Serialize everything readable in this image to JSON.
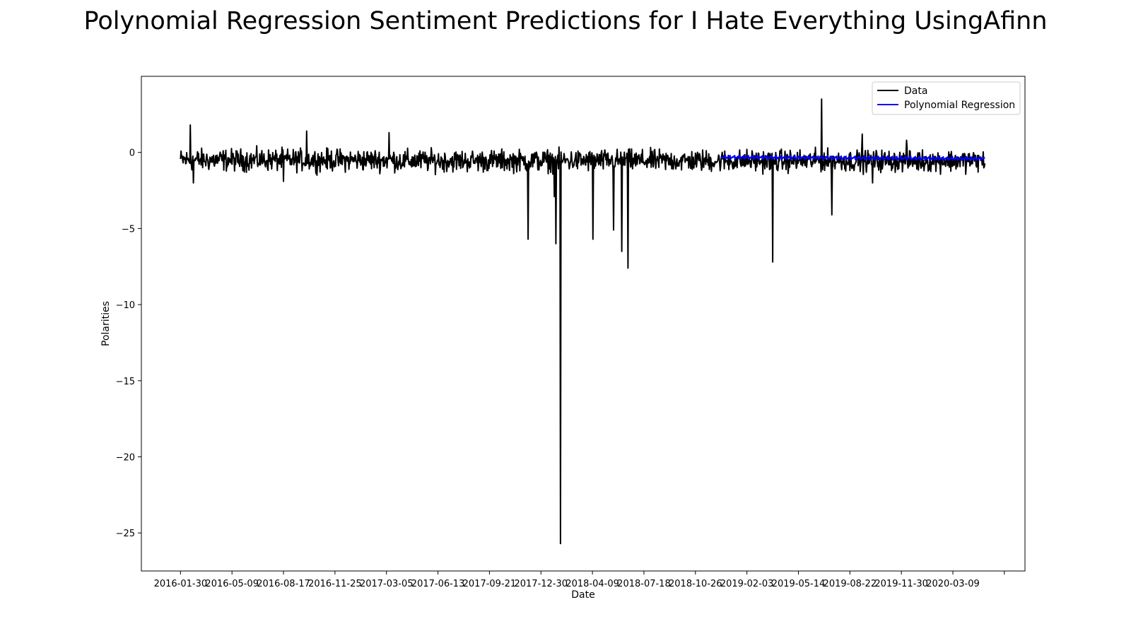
{
  "chart_data": {
    "type": "line",
    "title": "Polynomial Regression Sentiment Predictions for I Hate Everything UsingAfinn",
    "xlabel": "Date",
    "ylabel": "Polarities",
    "ylim": [
      -27.5,
      5
    ],
    "y_ticks": [
      0,
      -5,
      -10,
      -15,
      -20,
      -25
    ],
    "y_tick_labels": [
      "0",
      "−5",
      "−10",
      "−15",
      "−20",
      "−25"
    ],
    "x_ticks": [
      "2016-01-30",
      "2016-05-09",
      "2016-08-17",
      "2016-11-25",
      "2017-03-05",
      "2017-06-13",
      "2017-09-21",
      "2017-12-30",
      "2018-04-09",
      "2018-07-18",
      "2018-10-26",
      "2019-02-03",
      "2019-05-14",
      "2019-08-22",
      "2019-11-30",
      "2020-03-09"
    ],
    "x_range": [
      "2016-01-30",
      "2020-05-10"
    ],
    "grid": false,
    "legend_position": "top-right",
    "series": [
      {
        "name": "Data",
        "color": "#000000",
        "x_range": [
          "2016-01-30",
          "2020-05-10"
        ],
        "base_level": -0.5,
        "noise_amplitude": 0.7,
        "spikes": [
          {
            "date": "2016-02-18",
            "value": 1.8
          },
          {
            "date": "2016-02-24",
            "value": -2.0
          },
          {
            "date": "2016-08-17",
            "value": -1.9
          },
          {
            "date": "2016-10-01",
            "value": 1.4
          },
          {
            "date": "2017-03-10",
            "value": 1.3
          },
          {
            "date": "2017-12-05",
            "value": -5.7
          },
          {
            "date": "2018-01-25",
            "value": -2.9
          },
          {
            "date": "2018-01-28",
            "value": -6.0
          },
          {
            "date": "2018-02-06",
            "value": -25.7
          },
          {
            "date": "2018-04-10",
            "value": -5.7
          },
          {
            "date": "2018-05-20",
            "value": -5.1
          },
          {
            "date": "2018-06-05",
            "value": -6.5
          },
          {
            "date": "2018-06-17",
            "value": -7.6
          },
          {
            "date": "2019-03-25",
            "value": -7.2
          },
          {
            "date": "2019-06-28",
            "value": 3.5
          },
          {
            "date": "2019-07-18",
            "value": -4.1
          },
          {
            "date": "2019-09-15",
            "value": 1.2
          },
          {
            "date": "2019-10-05",
            "value": -2.0
          },
          {
            "date": "2019-12-10",
            "value": 0.8
          }
        ]
      },
      {
        "name": "Polynomial Regression",
        "color": "#0000ff",
        "x_range": [
          "2018-12-15",
          "2020-05-10"
        ],
        "values": [
          -0.3,
          -0.4
        ]
      }
    ]
  }
}
